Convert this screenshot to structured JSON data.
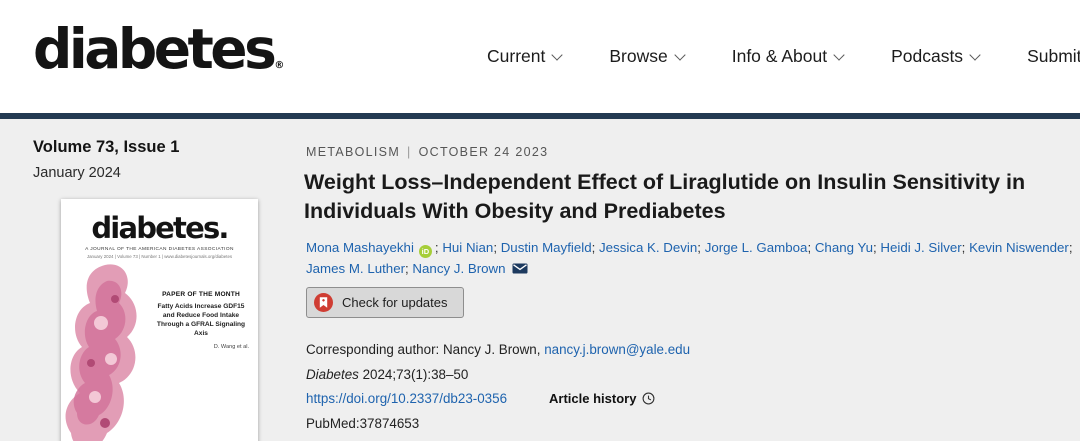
{
  "colors": {
    "page_bg": "#efefef",
    "navy_bar": "#233a52",
    "link_blue": "#1e63ae",
    "orcid_green": "#a6ce39",
    "crossmark_red": "#cf3d33"
  },
  "icons": {
    "orcid_text": "iD"
  },
  "header": {
    "logo": "diabetes",
    "logo_mark": "®",
    "nav": [
      {
        "label": "Current"
      },
      {
        "label": "Browse"
      },
      {
        "label": "Info & About"
      },
      {
        "label": "Podcasts"
      },
      {
        "label": "Submit"
      }
    ]
  },
  "sidebar": {
    "issue_title": "Volume 73, Issue 1",
    "issue_date": "January 2024",
    "cover": {
      "logo": "diabetes.",
      "journal_line": "A JOURNAL OF THE AMERICAN DIABETES ASSOCIATION",
      "issue_line": "January 2024 | Volume 73 | Number 1 | www.diabetesjournals.org/diabetes",
      "feature_label": "PAPER OF THE MONTH",
      "feature_title": "Fatty Acids Increase GDF15 and Reduce Food Intake Through a GFRAL Signaling Axis",
      "feature_authors": "D. Wang et al."
    }
  },
  "article": {
    "category": "METABOLISM",
    "meta_separator": "|",
    "pub_date": "OCTOBER 24 2023",
    "title": "Weight Loss–Independent Effect of Liraglutide on Insulin Sensitivity in Individuals With Obesity and Prediabetes",
    "authors": [
      {
        "name": "Mona Mashayekhi",
        "orcid": true
      },
      {
        "name": "Hui Nian"
      },
      {
        "name": "Dustin Mayfield"
      },
      {
        "name": "Jessica K. Devin"
      },
      {
        "name": "Jorge L. Gamboa"
      },
      {
        "name": "Chang Yu"
      },
      {
        "name": "Heidi J. Silver"
      },
      {
        "name": "Kevin Niswender"
      },
      {
        "name": "James M. Luther"
      },
      {
        "name": "Nancy J. Brown",
        "email_icon": true
      }
    ],
    "author_separator": "; ",
    "check_updates_label": "Check for updates",
    "corresponding_label": "Corresponding author: Nancy J. Brown,",
    "corresponding_email": "nancy.j.brown@yale.edu",
    "citation_journal": "Diabetes",
    "citation_detail": " 2024;73(1):38–50",
    "doi": "https://doi.org/10.2337/db23-0356",
    "article_history_label": "Article history",
    "pubmed_label": "PubMed:",
    "pubmed_id": "37874653"
  }
}
